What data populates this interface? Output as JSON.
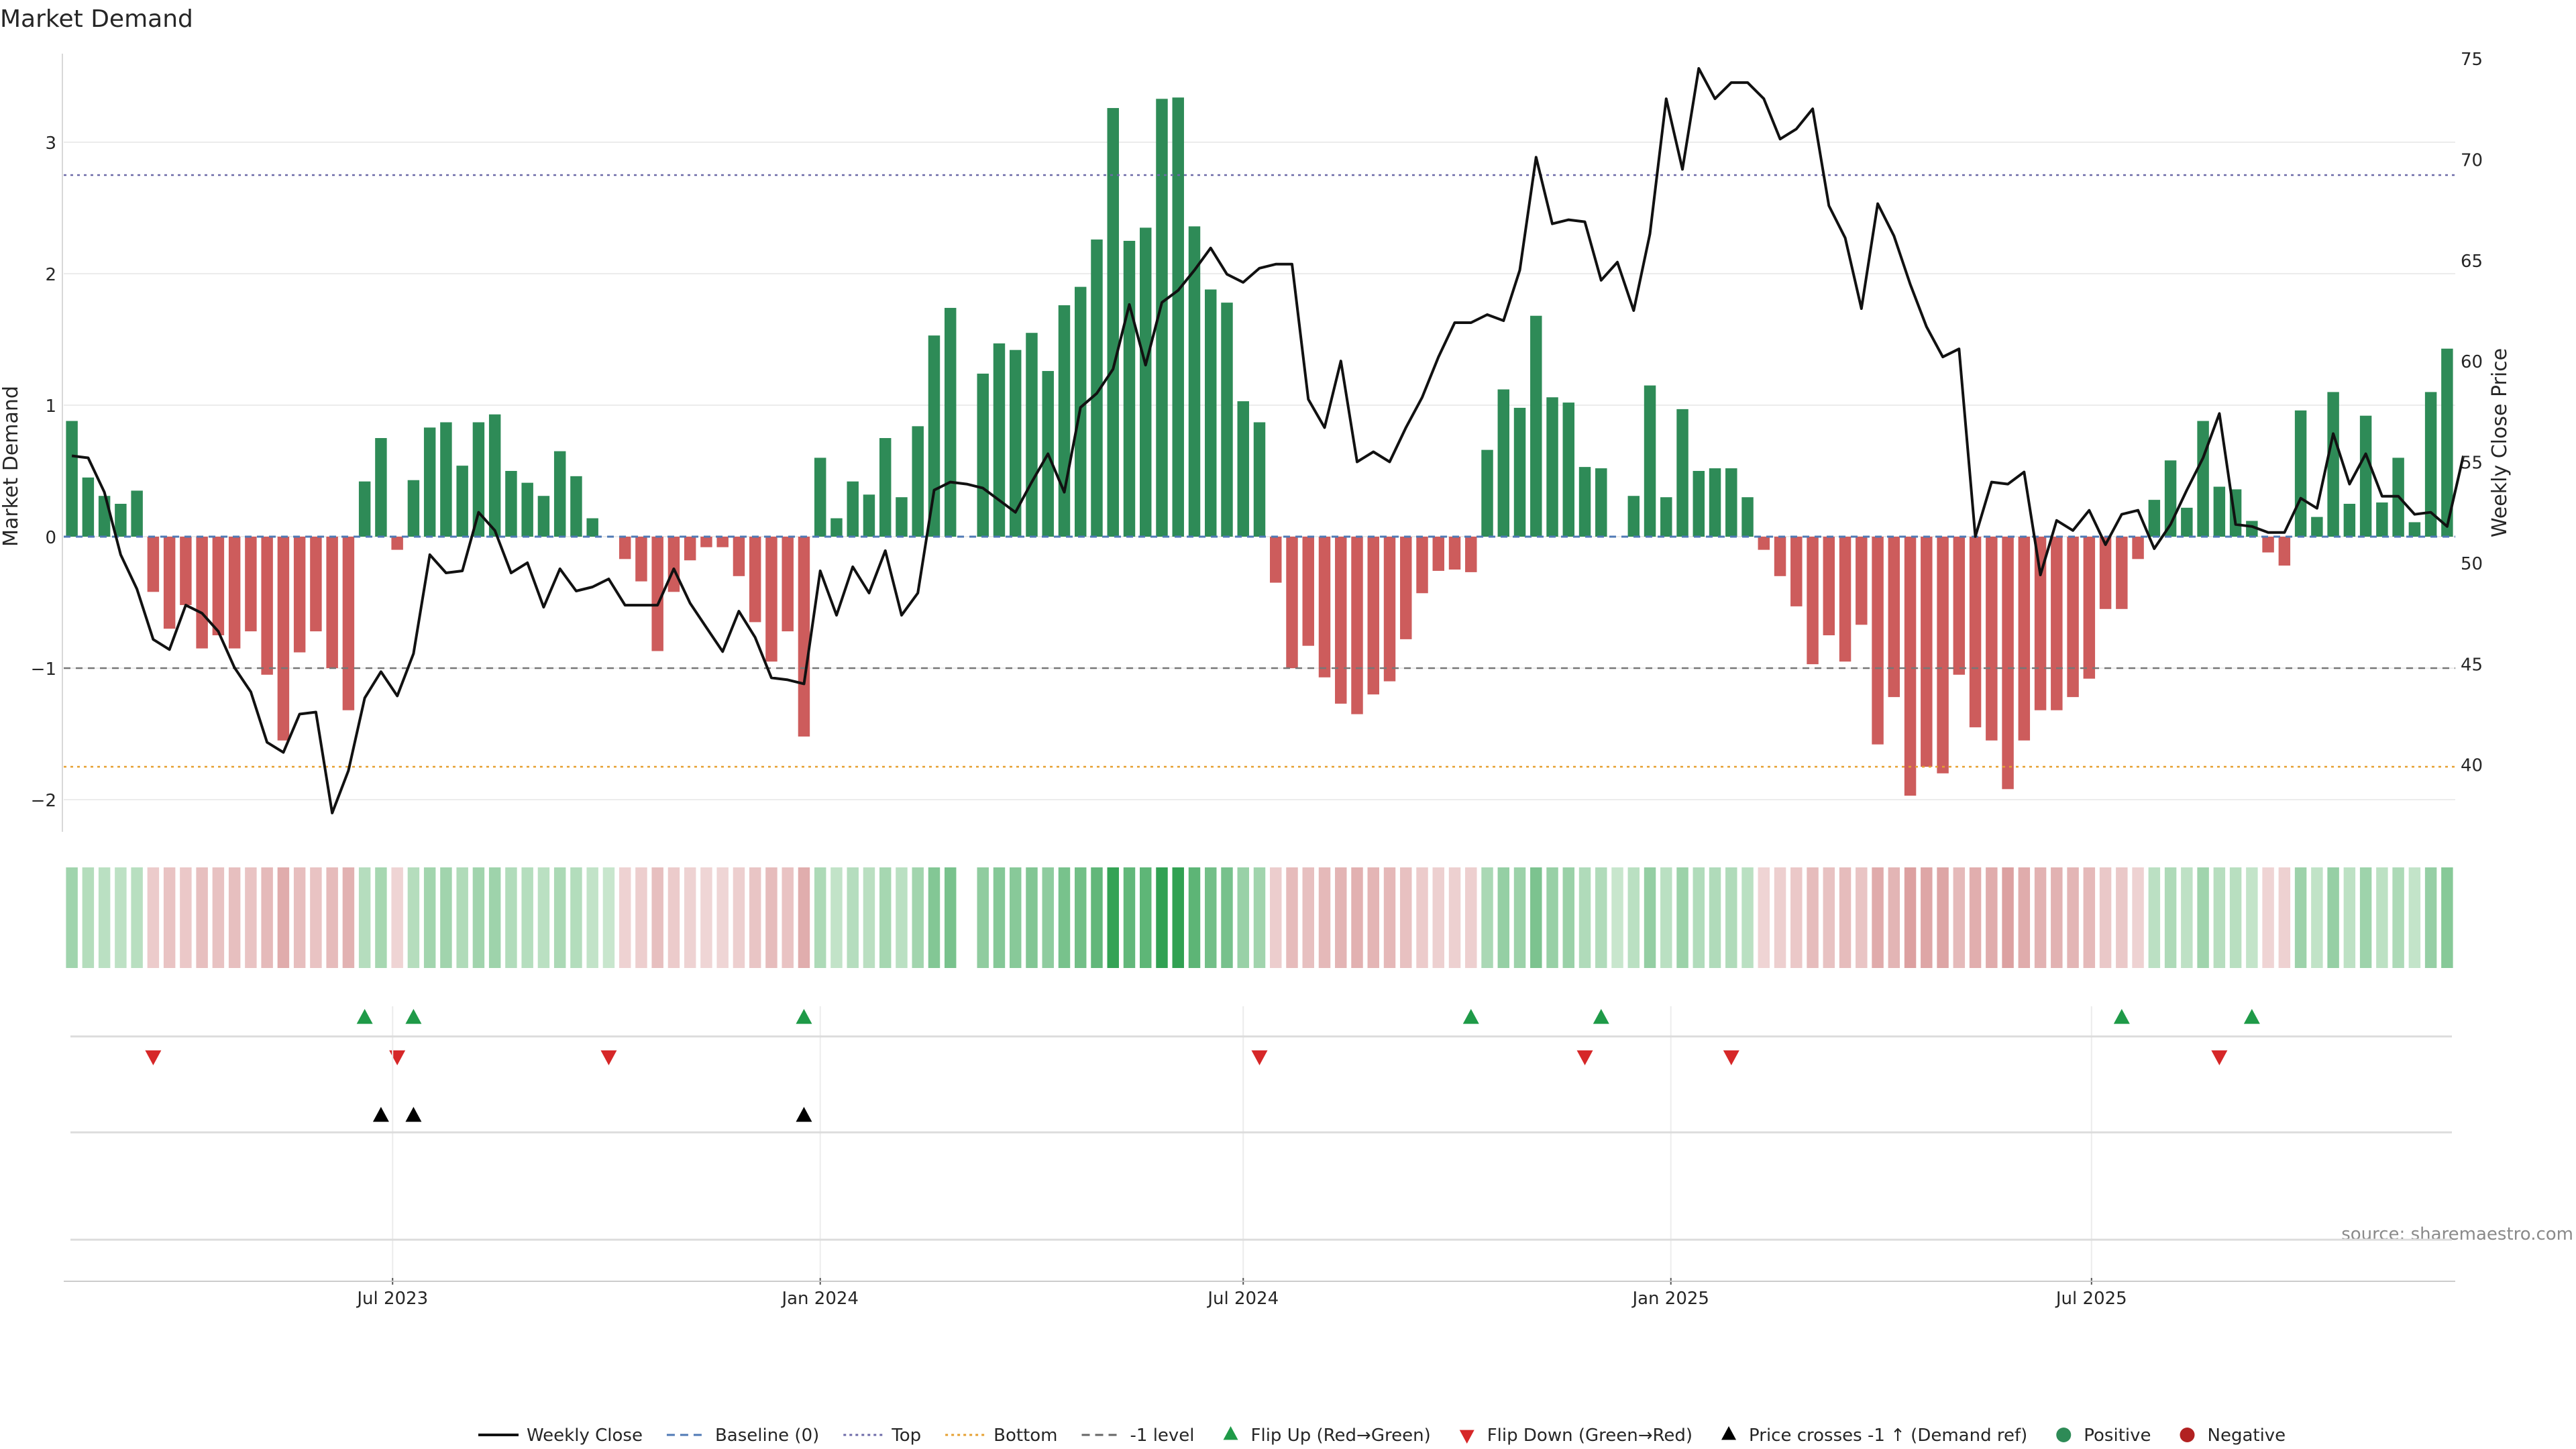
{
  "chart_data": {
    "type": "bar",
    "title": "Market Demand",
    "ylabel_left": "Market Demand",
    "ylabel_right": "Weekly Close Price",
    "source": "source: sharemaestro.com",
    "left_axis": {
      "ylim": [
        -2.2,
        3.6
      ],
      "ticks": [
        3,
        2,
        1,
        0,
        -1,
        -2
      ],
      "tick_labels": [
        "3",
        "2",
        "1",
        "0",
        "−1",
        "−2"
      ]
    },
    "right_axis": {
      "ylim": [
        36,
        75
      ],
      "ticks": [
        75,
        70,
        65,
        60,
        55,
        50,
        45,
        40
      ],
      "tick_labels": [
        "75",
        "70",
        "65",
        "60",
        "55",
        "50",
        "45",
        "40"
      ]
    },
    "x_axis": {
      "start": "2023-02-13",
      "ticks": [
        {
          "date": "2023-07-01",
          "label": "Jul 2023"
        },
        {
          "date": "2024-01-01",
          "label": "Jan 2024"
        },
        {
          "date": "2024-07-01",
          "label": "Jul 2024"
        },
        {
          "date": "2025-01-01",
          "label": "Jan 2025"
        },
        {
          "date": "2025-07-01",
          "label": "Jul 2025"
        }
      ]
    },
    "reference_lines": [
      {
        "name": "Top",
        "value": 2.75,
        "color": "#6d6aa8",
        "style": "dotted"
      },
      {
        "name": "-1 level",
        "value": -1,
        "color": "#777777",
        "style": "dashed"
      },
      {
        "name": "Bottom",
        "value": -1.75,
        "color": "#e6a030",
        "style": "dotted"
      },
      {
        "name": "Baseline (0)",
        "value": 0,
        "color": "#4f79b5",
        "style": "dashed"
      }
    ],
    "colors": {
      "positive": "#2e8b57",
      "negative": "#cd5c5c",
      "price_line": "#111111",
      "flip_up": "#1f9a48",
      "flip_down": "#d62728",
      "cross": "#000000"
    },
    "demand": [
      0.88,
      0.45,
      0.31,
      0.25,
      0.35,
      -0.42,
      -0.7,
      -0.52,
      -0.85,
      -0.75,
      -0.85,
      -0.72,
      -1.05,
      -1.55,
      -0.88,
      -0.72,
      -1.0,
      -1.32,
      0.42,
      0.75,
      -0.1,
      0.43,
      0.83,
      0.87,
      0.54,
      0.87,
      0.93,
      0.5,
      0.41,
      0.31,
      0.65,
      0.46,
      0.14,
      0,
      -0.17,
      -0.34,
      -0.87,
      -0.42,
      -0.18,
      -0.08,
      -0.08,
      -0.3,
      -0.65,
      -0.95,
      -0.72,
      -1.52,
      0.6,
      0.14,
      0.42,
      0.32,
      0.75,
      0.3,
      0.84,
      1.53,
      1.74,
      null,
      1.24,
      1.47,
      1.42,
      1.55,
      1.26,
      1.76,
      1.9,
      2.26,
      3.26,
      2.25,
      2.35,
      3.33,
      3.34,
      2.36,
      1.88,
      1.78,
      1.03,
      0.87,
      -0.35,
      -1.0,
      -0.83,
      -1.07,
      -1.27,
      -1.35,
      -1.2,
      -1.1,
      -0.78,
      -0.43,
      -0.26,
      -0.25,
      -0.27,
      0.66,
      1.12,
      0.98,
      1.68,
      1.06,
      1.02,
      0.53,
      0.52,
      0,
      0.31,
      1.15,
      0.3,
      0.97,
      0.5,
      0.52,
      0.52,
      0.3,
      -0.1,
      -0.3,
      -0.53,
      -0.97,
      -0.75,
      -0.95,
      -0.67,
      -1.58,
      -1.22,
      -1.97,
      -1.75,
      -1.8,
      -1.05,
      -1.45,
      -1.55,
      -1.92,
      -1.55,
      -1.32,
      -1.32,
      -1.22,
      -1.08,
      -0.55,
      -0.55,
      -0.17,
      0.28,
      0.58,
      0.22,
      0.88,
      0.38,
      0.36,
      0.12,
      -0.12,
      -0.22,
      0.96,
      0.15,
      1.1,
      0.25,
      0.92,
      0.26,
      0.6,
      0.11,
      1.1,
      1.43
    ],
    "price": [
      55.3,
      55.2,
      53.5,
      50.4,
      48.7,
      46.2,
      45.7,
      47.9,
      47.5,
      46.6,
      44.8,
      43.6,
      41.1,
      40.6,
      42.5,
      42.6,
      37.6,
      39.7,
      43.3,
      44.6,
      43.4,
      45.5,
      50.4,
      49.5,
      49.6,
      52.5,
      51.6,
      49.5,
      50.0,
      47.8,
      49.7,
      48.6,
      48.8,
      49.2,
      47.9,
      47.9,
      47.9,
      49.7,
      48.0,
      46.8,
      45.6,
      47.6,
      46.3,
      44.3,
      44.2,
      44.0,
      49.6,
      47.4,
      49.8,
      48.5,
      50.6,
      47.4,
      48.5,
      53.6,
      54.0,
      53.9,
      53.7,
      53.1,
      52.5,
      54.0,
      55.4,
      53.5,
      57.7,
      58.4,
      59.6,
      62.8,
      59.8,
      62.9,
      63.5,
      64.5,
      65.6,
      64.3,
      63.9,
      64.6,
      64.8,
      64.8,
      58.1,
      56.7,
      60.0,
      55.0,
      55.5,
      55.0,
      56.7,
      58.2,
      60.2,
      61.9,
      61.9,
      62.3,
      62.0,
      64.5,
      70.1,
      66.8,
      67.0,
      66.9,
      64.0,
      64.9,
      62.5,
      66.3,
      73.0,
      69.5,
      74.5,
      73.0,
      73.8,
      73.8,
      73.0,
      71.0,
      71.5,
      72.5,
      67.7,
      66.1,
      62.6,
      67.8,
      66.2,
      63.8,
      61.7,
      60.2,
      60.6,
      51.3,
      54.0,
      53.9,
      54.5,
      49.4,
      52.1,
      51.6,
      52.6,
      50.9,
      52.4,
      52.6,
      50.7,
      51.9,
      53.6,
      55.2,
      57.4,
      51.9,
      51.8,
      51.5,
      51.5,
      53.2,
      52.7,
      56.4,
      53.9,
      55.4,
      53.3,
      53.3,
      52.4,
      52.5,
      51.8,
      55.3
    ],
    "flip_up": [
      18,
      21,
      45,
      86,
      94,
      126,
      134
    ],
    "flip_down": [
      5,
      20,
      33,
      73,
      93,
      102,
      132
    ],
    "price_cross": [
      19,
      21,
      45
    ],
    "legend": [
      {
        "label": "Weekly Close",
        "symbol": "line",
        "color": "#111111"
      },
      {
        "label": "Baseline (0)",
        "symbol": "dashed",
        "color": "#4f79b5"
      },
      {
        "label": "Top",
        "symbol": "dotted",
        "color": "#6d6aa8"
      },
      {
        "label": "Bottom",
        "symbol": "dotted",
        "color": "#e6a030"
      },
      {
        "label": "-1 level",
        "symbol": "dashed",
        "color": "#666666"
      },
      {
        "label": "Flip Up (Red→Green)",
        "symbol": "tri-up",
        "color": "#1f9a48"
      },
      {
        "label": "Flip Down (Green→Red)",
        "symbol": "tri-down",
        "color": "#d62728"
      },
      {
        "label": "Price crosses -1 ↑ (Demand ref)",
        "symbol": "tri-up",
        "color": "#000000"
      },
      {
        "label": "Positive",
        "symbol": "dot",
        "color": "#2e8b57"
      },
      {
        "label": "Negative",
        "symbol": "dot",
        "color": "#b22222"
      }
    ]
  }
}
